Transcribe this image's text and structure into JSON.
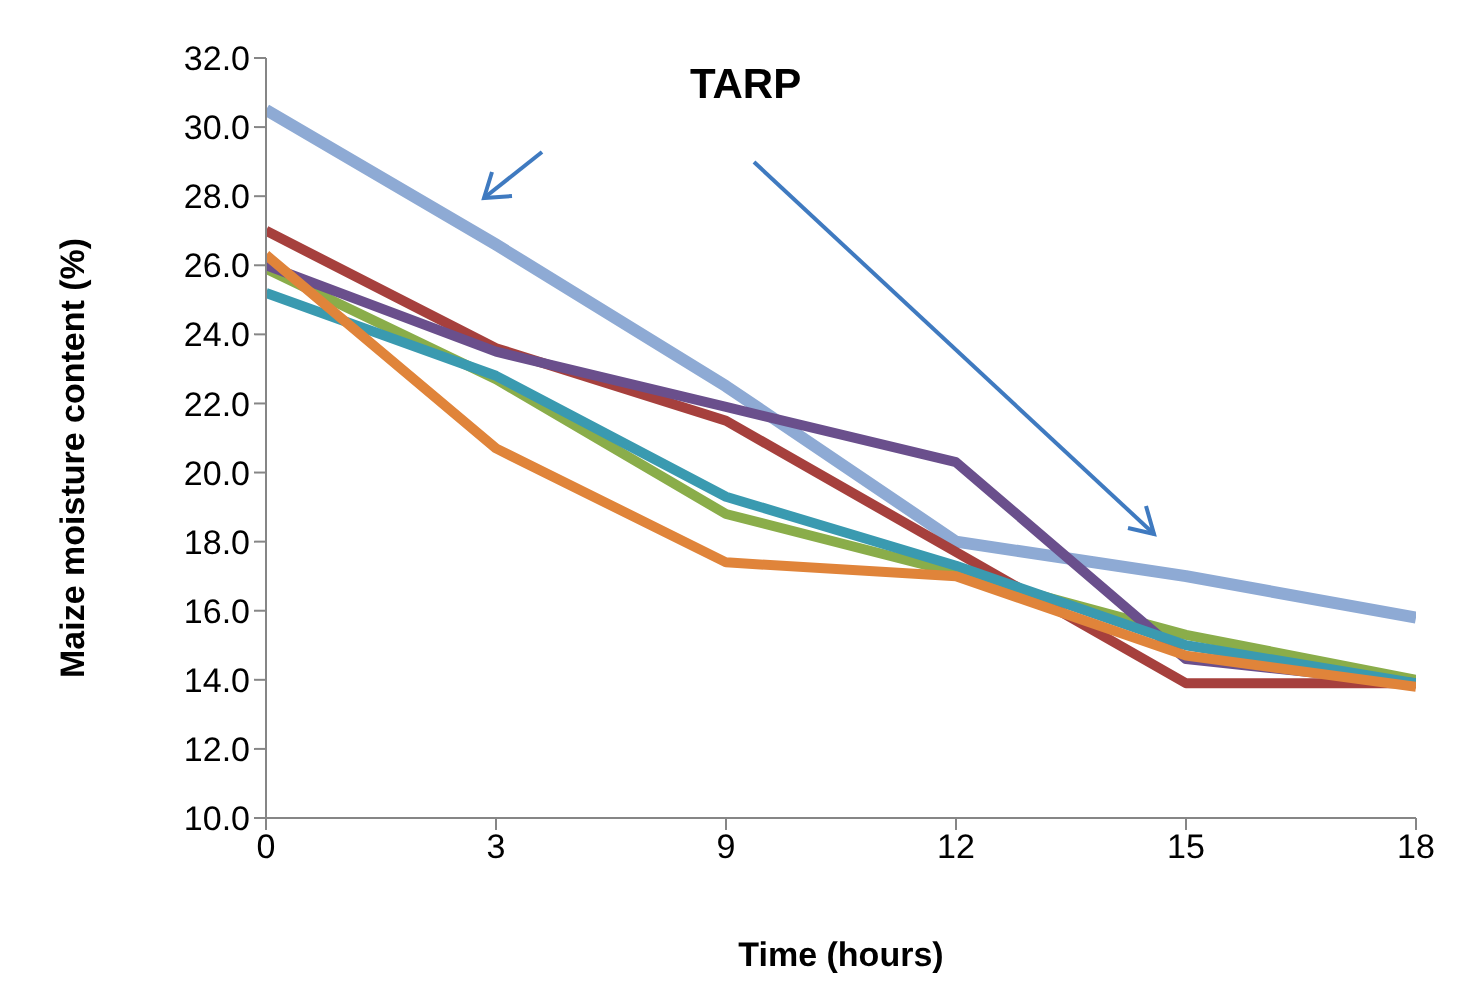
{
  "chart_data": {
    "type": "line",
    "xlabel": "Time (hours)",
    "ylabel": "Maize moisture content (%)",
    "categories": [
      "0",
      "3",
      "9",
      "12",
      "15",
      "18"
    ],
    "series": [
      {
        "color": "#8eaad4",
        "values": [
          30.5,
          26.6,
          22.5,
          18.0,
          17.0,
          15.8
        ]
      },
      {
        "color": "#a6403d",
        "values": [
          27.0,
          23.6,
          21.5,
          17.7,
          13.9,
          13.9
        ]
      },
      {
        "color": "#8aad4a",
        "values": [
          25.9,
          22.7,
          18.8,
          17.1,
          15.3,
          14.0
        ]
      },
      {
        "color": "#6a4f8c",
        "values": [
          26.0,
          23.5,
          21.9,
          20.3,
          14.6,
          13.9
        ]
      },
      {
        "color": "#3a9ab0",
        "values": [
          25.2,
          22.8,
          19.3,
          17.3,
          15.0,
          13.9
        ]
      },
      {
        "color": "#e0843a",
        "values": [
          26.3,
          20.7,
          17.4,
          17.0,
          14.7,
          13.8
        ]
      }
    ],
    "ylim": [
      10,
      32
    ],
    "yticks": [
      {
        "value": 10,
        "label": "10.0"
      },
      {
        "value": 12,
        "label": "12.0"
      },
      {
        "value": 14,
        "label": "14.0"
      },
      {
        "value": 16,
        "label": "16.0"
      },
      {
        "value": 18,
        "label": "18.0"
      },
      {
        "value": 20,
        "label": "20.0"
      },
      {
        "value": 22,
        "label": "22.0"
      },
      {
        "value": 24,
        "label": "24.0"
      },
      {
        "value": 26,
        "label": "26.0"
      },
      {
        "value": 28,
        "label": "28.0"
      },
      {
        "value": 30,
        "label": "30.0"
      },
      {
        "value": 32,
        "label": "32.0"
      }
    ],
    "annotations": [
      "TARP"
    ],
    "grid": false,
    "legend": false,
    "marker": "none",
    "line_style": "solid"
  }
}
